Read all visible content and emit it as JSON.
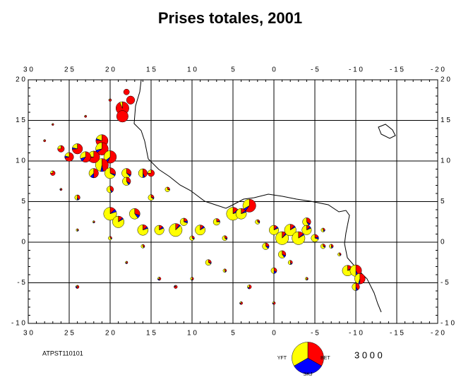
{
  "title": "Prises totales, 2001",
  "code": "ATPST110101",
  "xlim": [
    30,
    -20
  ],
  "ylim": [
    -10,
    20
  ],
  "xticks": [
    {
      "value": 30,
      "label": "3 0"
    },
    {
      "value": 25,
      "label": "2 5"
    },
    {
      "value": 20,
      "label": "2 0"
    },
    {
      "value": 15,
      "label": "1 5"
    },
    {
      "value": 10,
      "label": "1 0"
    },
    {
      "value": 5,
      "label": "5"
    },
    {
      "value": 0,
      "label": "0"
    },
    {
      "value": -5,
      "label": "- 5"
    },
    {
      "value": -10,
      "label": "- 1 0"
    },
    {
      "value": -15,
      "label": "- 1 5"
    },
    {
      "value": -20,
      "label": "- 2 0"
    }
  ],
  "yticks": [
    {
      "value": 20,
      "label": "2 0"
    },
    {
      "value": 15,
      "label": "1 5"
    },
    {
      "value": 10,
      "label": "1 0"
    },
    {
      "value": 5,
      "label": "5"
    },
    {
      "value": 0,
      "label": "0"
    },
    {
      "value": -5,
      "label": "- 5"
    },
    {
      "value": -10,
      "label": "- 1 0"
    }
  ],
  "species": [
    {
      "name": "YFT",
      "color": "#ff0000"
    },
    {
      "name": "BET",
      "color": "#0000ff"
    },
    {
      "name": "SKJ",
      "color": "#ffff00"
    }
  ],
  "legend_size": {
    "value": 3000,
    "label": "3 0 0 0"
  },
  "points": [
    [
      18.5,
      16.5,
      1400,
      0,
      100
    ],
    [
      18.5,
      15.5,
      1200,
      0,
      0
    ],
    [
      17.5,
      17.5,
      600,
      0,
      0
    ],
    [
      18,
      18.5,
      300,
      0,
      0
    ],
    [
      21,
      12.5,
      1000,
      50,
      250
    ],
    [
      21,
      11.5,
      900,
      100,
      400
    ],
    [
      20,
      10.5,
      800,
      100,
      500
    ],
    [
      21,
      9.5,
      700,
      100,
      700
    ],
    [
      22,
      10.5,
      900,
      50,
      300
    ],
    [
      24,
      11.5,
      700,
      50,
      200
    ],
    [
      23,
      10.5,
      600,
      100,
      300
    ],
    [
      25,
      10.5,
      500,
      50,
      150
    ],
    [
      22,
      8.5,
      400,
      100,
      300
    ],
    [
      20,
      8.5,
      300,
      50,
      700
    ],
    [
      18,
      8.5,
      250,
      50,
      500
    ],
    [
      16,
      8.5,
      300,
      50,
      350
    ],
    [
      15,
      8.5,
      300,
      0,
      100
    ],
    [
      26,
      11.5,
      300,
      0,
      100
    ],
    [
      27,
      8.5,
      150,
      0,
      50
    ],
    [
      24,
      5.5,
      100,
      30,
      120
    ],
    [
      20,
      6.5,
      150,
      30,
      220
    ],
    [
      18,
      7.5,
      200,
      50,
      350
    ],
    [
      15,
      5.5,
      80,
      20,
      200
    ],
    [
      13,
      6.5,
      50,
      10,
      140
    ],
    [
      20,
      3.5,
      200,
      100,
      1200
    ],
    [
      19,
      2.5,
      150,
      50,
      1000
    ],
    [
      17,
      3.5,
      300,
      100,
      600
    ],
    [
      16,
      1.5,
      150,
      50,
      800
    ],
    [
      14,
      1.5,
      100,
      50,
      650
    ],
    [
      12,
      1.5,
      150,
      50,
      1300
    ],
    [
      11,
      2.5,
      100,
      50,
      350
    ],
    [
      9,
      1.5,
      100,
      50,
      750
    ],
    [
      7,
      2.5,
      80,
      20,
      300
    ],
    [
      5,
      3.5,
      200,
      100,
      1200
    ],
    [
      3,
      4.5,
      900,
      100,
      500
    ],
    [
      4,
      3.5,
      150,
      50,
      800
    ],
    [
      0,
      1.5,
      100,
      50,
      650
    ],
    [
      -1,
      0.5,
      150,
      50,
      1300
    ],
    [
      -2,
      1.5,
      150,
      50,
      1000
    ],
    [
      -3,
      0.5,
      200,
      50,
      1250
    ],
    [
      -4,
      2.5,
      200,
      50,
      350
    ],
    [
      -4,
      1.5,
      100,
      50,
      650
    ],
    [
      -5,
      0.5,
      100,
      50,
      350
    ],
    [
      -1,
      -1.5,
      150,
      50,
      300
    ],
    [
      -9,
      -3.5,
      150,
      50,
      800
    ],
    [
      -10,
      -3.5,
      500,
      100,
      600
    ],
    [
      -10.5,
      -4.5,
      500,
      50,
      450
    ],
    [
      -10,
      -5.5,
      200,
      50,
      250
    ],
    [
      8,
      -2.5,
      80,
      20,
      200
    ],
    [
      1,
      -0.5,
      100,
      50,
      250
    ],
    [
      0,
      -3.5,
      100,
      50,
      150
    ],
    [
      -6,
      -0.5,
      50,
      20,
      130
    ],
    [
      -7,
      -0.5,
      50,
      20,
      80
    ],
    [
      24,
      -5.5,
      60,
      20,
      20
    ],
    [
      4,
      -7.5,
      50,
      10,
      20
    ],
    [
      0,
      -7.5,
      50,
      10,
      20
    ],
    [
      14,
      -4.5,
      50,
      20,
      30
    ],
    [
      3,
      -5.5,
      80,
      20,
      50
    ],
    [
      12,
      -5.5,
      80,
      10,
      10
    ],
    [
      18,
      -2.5,
      30,
      10,
      20
    ],
    [
      22,
      2.5,
      20,
      10,
      20
    ],
    [
      26,
      6.5,
      30,
      10,
      10
    ],
    [
      28,
      12.5,
      40,
      0,
      10
    ],
    [
      27,
      14.5,
      30,
      0,
      10
    ],
    [
      23,
      15.5,
      40,
      0,
      10
    ],
    [
      20,
      17.5,
      60,
      0,
      10
    ],
    [
      10,
      0.5,
      50,
      20,
      130
    ],
    [
      6,
      0.5,
      60,
      20,
      140
    ],
    [
      2,
      2.5,
      40,
      20,
      120
    ],
    [
      -2,
      -2.5,
      60,
      20,
      90
    ],
    [
      -8,
      -1.5,
      30,
      10,
      60
    ],
    [
      -6,
      1.5,
      40,
      20,
      80
    ],
    [
      16,
      -0.5,
      40,
      10,
      70
    ],
    [
      20,
      0.5,
      30,
      10,
      80
    ],
    [
      24,
      1.5,
      20,
      10,
      30
    ],
    [
      6,
      -3.5,
      40,
      10,
      60
    ],
    [
      10,
      -4.5,
      40,
      10,
      40
    ],
    [
      -4,
      -4.5,
      30,
      10,
      40
    ]
  ]
}
